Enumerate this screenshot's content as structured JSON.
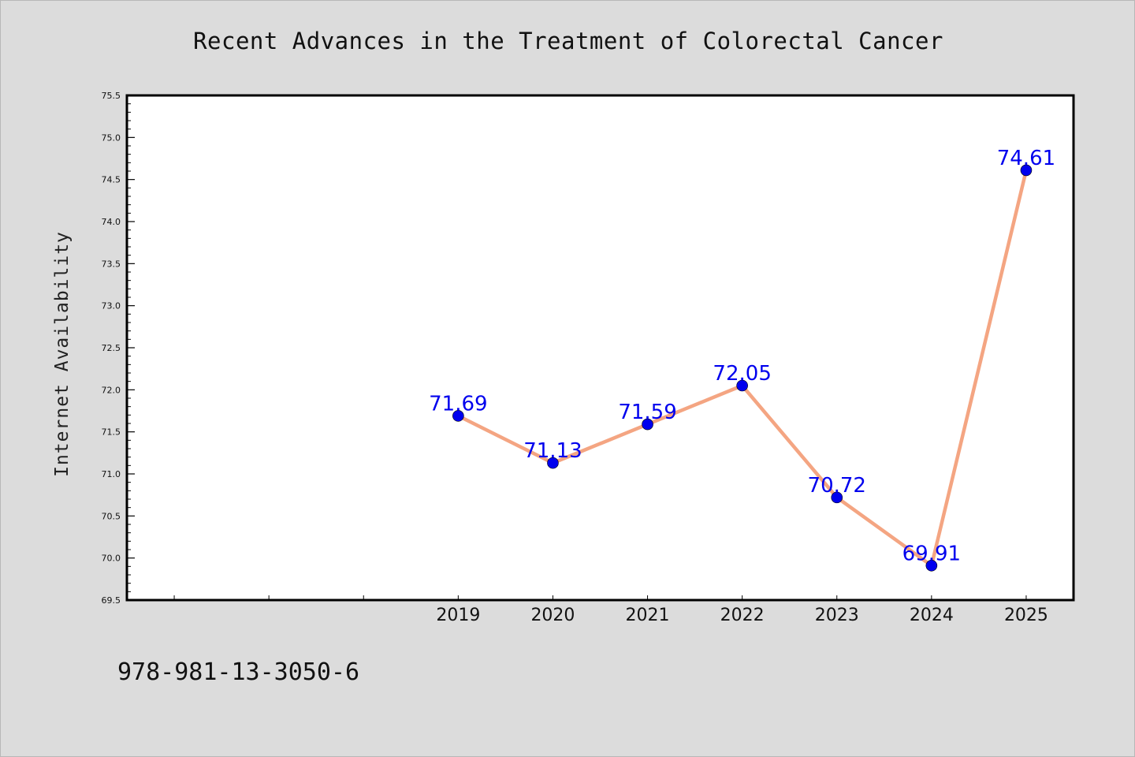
{
  "chart_data": {
    "type": "line",
    "title": "Recent Advances in the Treatment of Colorectal Cancer",
    "xlabel": "",
    "ylabel": "Internet Availability",
    "ylim": [
      69.5,
      75.5
    ],
    "ytick_step": 0.5,
    "yticks": [
      "69.5",
      "70.0",
      "70.5",
      "71.0",
      "71.5",
      "72.0",
      "72.5",
      "73.0",
      "73.5",
      "74.0",
      "74.5",
      "75.0",
      "75.5"
    ],
    "x": [
      2019,
      2020,
      2021,
      2022,
      2023,
      2024,
      2025
    ],
    "xlim": [
      2015.5,
      2025.5
    ],
    "xtick_labels": [
      "2019",
      "2020",
      "2021",
      "2022",
      "2023",
      "2024",
      "2025"
    ],
    "series": [
      {
        "values": [
          71.69,
          71.13,
          71.59,
          72.05,
          70.72,
          69.91,
          74.61
        ],
        "labels": [
          "71.69",
          "71.13",
          "71.59",
          "72.05",
          "70.72",
          "69.91",
          "74.61"
        ]
      }
    ],
    "grid": false,
    "legend": "none",
    "line_color": "#f4a582",
    "marker_color": "#0000ee",
    "label_color": "#0000ee"
  },
  "footnote": "978-981-13-3050-6"
}
